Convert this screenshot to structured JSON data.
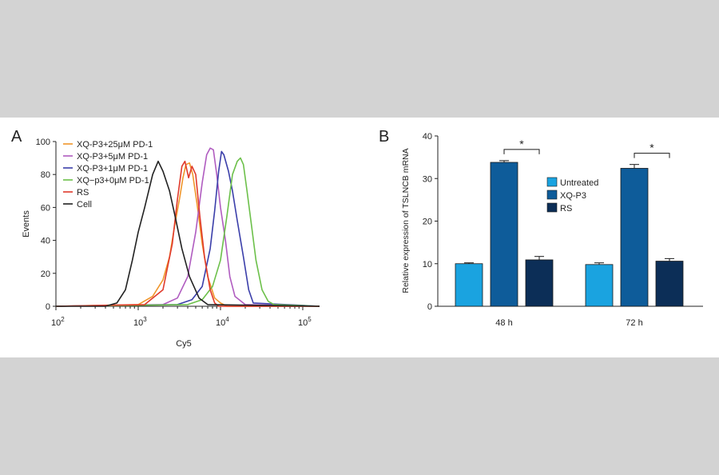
{
  "chart_data": [
    {
      "panel": "A",
      "type": "line",
      "xlabel": "Cy5",
      "ylabel": "Events",
      "xscale": "log",
      "xlim": [
        100,
        160000
      ],
      "ylim": [
        0,
        100
      ],
      "yticks": [
        0,
        20,
        40,
        60,
        80,
        100
      ],
      "xticks": [
        {
          "value": 100,
          "base": "10",
          "exp": "2"
        },
        {
          "value": 1000,
          "base": "10",
          "exp": "3"
        },
        {
          "value": 10000,
          "base": "10",
          "exp": "4"
        },
        {
          "value": 100000,
          "base": "10",
          "exp": "5"
        }
      ],
      "legend_position": "top-left",
      "series": [
        {
          "name": "XQ-P3+25μM PD-1",
          "color": "#f0962a",
          "x": [
            100,
            1000,
            1500,
            2000,
            2400,
            2800,
            3200,
            3500,
            3800,
            4200,
            4600,
            5200,
            6000,
            7000,
            8500,
            10000,
            12000,
            160000
          ],
          "y": [
            0,
            1,
            6,
            16,
            30,
            50,
            66,
            78,
            86,
            87,
            80,
            62,
            38,
            18,
            5,
            2,
            0,
            0
          ]
        },
        {
          "name": "XQ-P3+5μM PD-1",
          "color": "#b05cc0",
          "x": [
            100,
            2000,
            3000,
            4000,
            5000,
            6000,
            6800,
            7500,
            8200,
            9000,
            10000,
            11500,
            13000,
            15000,
            20000,
            160000
          ],
          "y": [
            0,
            1,
            5,
            18,
            45,
            75,
            92,
            96,
            95,
            80,
            60,
            40,
            18,
            6,
            1,
            0
          ]
        },
        {
          "name": "XQ-P3+1μM PD-1",
          "color": "#3b3faa",
          "x": [
            100,
            3000,
            4500,
            6000,
            7500,
            8500,
            9500,
            10300,
            11000,
            12500,
            14000,
            16000,
            19000,
            22000,
            25000,
            160000
          ],
          "y": [
            0,
            1,
            4,
            12,
            35,
            58,
            82,
            94,
            92,
            82,
            70,
            52,
            30,
            10,
            2,
            0
          ]
        },
        {
          "name": "XQ−p3+0μM PD-1",
          "color": "#6cc04a",
          "x": [
            100,
            4000,
            6000,
            8000,
            10000,
            12000,
            14000,
            16000,
            17500,
            19000,
            21000,
            24000,
            27000,
            32000,
            38000,
            45000,
            160000
          ],
          "y": [
            0,
            1,
            4,
            12,
            28,
            55,
            80,
            88,
            90,
            86,
            70,
            48,
            28,
            10,
            3,
            1,
            0
          ]
        },
        {
          "name": "RS",
          "color": "#e03a2c",
          "x": [
            100,
            1200,
            2000,
            2600,
            3000,
            3400,
            3700,
            4100,
            4500,
            5000,
            5600,
            6400,
            7500,
            8500,
            9500,
            160000
          ],
          "y": [
            0,
            1,
            10,
            38,
            65,
            85,
            88,
            78,
            85,
            80,
            55,
            30,
            10,
            2,
            0,
            0
          ]
        },
        {
          "name": "Cell",
          "color": "#222222",
          "x": [
            100,
            400,
            550,
            700,
            850,
            1000,
            1200,
            1500,
            1750,
            2000,
            2400,
            2800,
            3400,
            4200,
            5500,
            7000,
            160000
          ],
          "y": [
            0,
            0,
            2,
            10,
            28,
            45,
            60,
            80,
            88,
            82,
            70,
            55,
            35,
            18,
            5,
            1,
            0
          ]
        }
      ]
    },
    {
      "panel": "B",
      "type": "bar",
      "ylabel": "Relative expression of TSLNCB mRNA",
      "ylim": [
        0,
        40
      ],
      "yticks": [
        0,
        10,
        20,
        30,
        40
      ],
      "categories": [
        "48 h",
        "72 h"
      ],
      "legend_position": "center-right",
      "series": [
        {
          "name": "Untreated",
          "color": "#1aa3e0",
          "values": [
            10.0,
            9.8
          ],
          "errors": [
            0.2,
            0.4
          ]
        },
        {
          "name": "XQ-P3",
          "color": "#0e5c9a",
          "values": [
            33.8,
            32.4
          ],
          "errors": [
            0.4,
            0.9
          ]
        },
        {
          "name": "RS",
          "color": "#0c2e57",
          "values": [
            10.9,
            10.6
          ],
          "errors": [
            0.8,
            0.6
          ]
        }
      ],
      "annotations": [
        {
          "category": "48 h",
          "from": "XQ-P3",
          "to": "RS",
          "label": "*"
        },
        {
          "category": "72 h",
          "from": "XQ-P3",
          "to": "RS",
          "label": "*"
        }
      ]
    }
  ]
}
